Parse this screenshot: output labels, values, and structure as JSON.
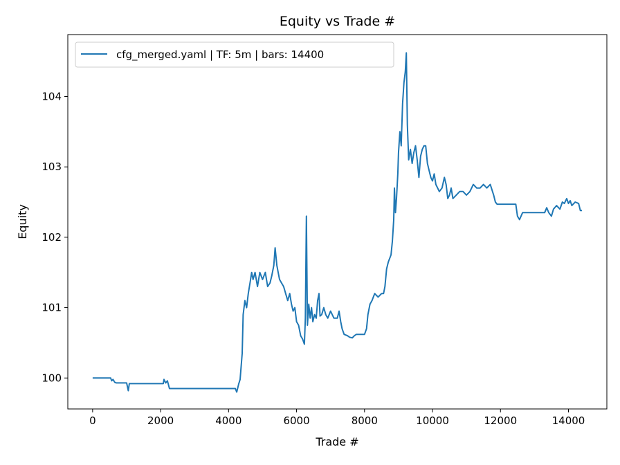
{
  "chart_data": {
    "type": "line",
    "title": "Equity vs Trade #",
    "xlabel": "Trade #",
    "ylabel": "Equity",
    "xlim": [
      -730,
      15130
    ],
    "ylim": [
      99.56,
      104.88
    ],
    "xticks": [
      0,
      2000,
      4000,
      6000,
      8000,
      10000,
      12000,
      14000
    ],
    "yticks": [
      100,
      101,
      102,
      103,
      104
    ],
    "grid": false,
    "legend_position": "top-left",
    "series_color": "#1f77b4",
    "series": [
      {
        "name": "cfg_merged.yaml | TF: 5m | bars: 14400",
        "points": [
          [
            0,
            100.0
          ],
          [
            530,
            100.0
          ],
          [
            560,
            99.96
          ],
          [
            600,
            99.98
          ],
          [
            650,
            99.94
          ],
          [
            700,
            99.93
          ],
          [
            1000,
            99.93
          ],
          [
            1050,
            99.82
          ],
          [
            1080,
            99.92
          ],
          [
            2080,
            99.92
          ],
          [
            2100,
            99.98
          ],
          [
            2150,
            99.93
          ],
          [
            2200,
            99.96
          ],
          [
            2260,
            99.85
          ],
          [
            4200,
            99.85
          ],
          [
            4240,
            99.8
          ],
          [
            4300,
            99.92
          ],
          [
            4340,
            99.98
          ],
          [
            4400,
            100.35
          ],
          [
            4430,
            100.9
          ],
          [
            4480,
            101.1
          ],
          [
            4530,
            101.0
          ],
          [
            4580,
            101.2
          ],
          [
            4630,
            101.35
          ],
          [
            4680,
            101.5
          ],
          [
            4720,
            101.4
          ],
          [
            4780,
            101.5
          ],
          [
            4850,
            101.3
          ],
          [
            4920,
            101.5
          ],
          [
            5000,
            101.4
          ],
          [
            5080,
            101.5
          ],
          [
            5150,
            101.3
          ],
          [
            5220,
            101.35
          ],
          [
            5270,
            101.45
          ],
          [
            5330,
            101.6
          ],
          [
            5370,
            101.85
          ],
          [
            5420,
            101.6
          ],
          [
            5460,
            101.5
          ],
          [
            5500,
            101.4
          ],
          [
            5560,
            101.35
          ],
          [
            5620,
            101.3
          ],
          [
            5680,
            101.2
          ],
          [
            5740,
            101.1
          ],
          [
            5800,
            101.2
          ],
          [
            5850,
            101.05
          ],
          [
            5900,
            100.95
          ],
          [
            5950,
            101.0
          ],
          [
            6000,
            100.8
          ],
          [
            6060,
            100.75
          ],
          [
            6120,
            100.6
          ],
          [
            6180,
            100.55
          ],
          [
            6230,
            100.48
          ],
          [
            6260,
            100.85
          ],
          [
            6290,
            102.3
          ],
          [
            6320,
            100.75
          ],
          [
            6360,
            101.05
          ],
          [
            6400,
            100.85
          ],
          [
            6440,
            101.0
          ],
          [
            6480,
            100.8
          ],
          [
            6530,
            100.9
          ],
          [
            6580,
            100.85
          ],
          [
            6620,
            101.1
          ],
          [
            6660,
            101.2
          ],
          [
            6690,
            100.88
          ],
          [
            6740,
            100.9
          ],
          [
            6800,
            101.0
          ],
          [
            6860,
            100.9
          ],
          [
            6920,
            100.85
          ],
          [
            7000,
            100.95
          ],
          [
            7100,
            100.85
          ],
          [
            7200,
            100.85
          ],
          [
            7250,
            100.95
          ],
          [
            7300,
            100.8
          ],
          [
            7340,
            100.7
          ],
          [
            7400,
            100.62
          ],
          [
            7500,
            100.6
          ],
          [
            7560,
            100.58
          ],
          [
            7640,
            100.57
          ],
          [
            7700,
            100.6
          ],
          [
            7760,
            100.62
          ],
          [
            8000,
            100.62
          ],
          [
            8060,
            100.7
          ],
          [
            8100,
            100.9
          ],
          [
            8160,
            101.05
          ],
          [
            8220,
            101.1
          ],
          [
            8300,
            101.2
          ],
          [
            8400,
            101.15
          ],
          [
            8500,
            101.2
          ],
          [
            8560,
            101.2
          ],
          [
            8600,
            101.3
          ],
          [
            8650,
            101.55
          ],
          [
            8700,
            101.65
          ],
          [
            8780,
            101.75
          ],
          [
            8820,
            101.95
          ],
          [
            8860,
            102.25
          ],
          [
            8880,
            102.7
          ],
          [
            8910,
            102.35
          ],
          [
            8940,
            102.55
          ],
          [
            8980,
            102.9
          ],
          [
            9000,
            103.2
          ],
          [
            9040,
            103.5
          ],
          [
            9080,
            103.3
          ],
          [
            9120,
            103.9
          ],
          [
            9160,
            104.2
          ],
          [
            9200,
            104.35
          ],
          [
            9230,
            104.62
          ],
          [
            9260,
            103.6
          ],
          [
            9300,
            103.1
          ],
          [
            9350,
            103.25
          ],
          [
            9400,
            103.05
          ],
          [
            9450,
            103.2
          ],
          [
            9500,
            103.3
          ],
          [
            9550,
            103.1
          ],
          [
            9600,
            102.85
          ],
          [
            9650,
            103.15
          ],
          [
            9700,
            103.25
          ],
          [
            9750,
            103.3
          ],
          [
            9800,
            103.3
          ],
          [
            9850,
            103.05
          ],
          [
            9900,
            102.95
          ],
          [
            9950,
            102.85
          ],
          [
            10000,
            102.8
          ],
          [
            10050,
            102.9
          ],
          [
            10100,
            102.75
          ],
          [
            10150,
            102.7
          ],
          [
            10200,
            102.65
          ],
          [
            10280,
            102.7
          ],
          [
            10350,
            102.85
          ],
          [
            10400,
            102.75
          ],
          [
            10450,
            102.55
          ],
          [
            10500,
            102.6
          ],
          [
            10550,
            102.7
          ],
          [
            10600,
            102.55
          ],
          [
            10700,
            102.6
          ],
          [
            10800,
            102.65
          ],
          [
            10900,
            102.65
          ],
          [
            11000,
            102.6
          ],
          [
            11100,
            102.65
          ],
          [
            11200,
            102.75
          ],
          [
            11300,
            102.7
          ],
          [
            11400,
            102.7
          ],
          [
            11500,
            102.75
          ],
          [
            11600,
            102.7
          ],
          [
            11700,
            102.75
          ],
          [
            11800,
            102.6
          ],
          [
            11850,
            102.5
          ],
          [
            11900,
            102.47
          ],
          [
            12450,
            102.47
          ],
          [
            12500,
            102.3
          ],
          [
            12560,
            102.25
          ],
          [
            12650,
            102.35
          ],
          [
            12700,
            102.35
          ],
          [
            13300,
            102.35
          ],
          [
            13360,
            102.42
          ],
          [
            13420,
            102.35
          ],
          [
            13500,
            102.3
          ],
          [
            13560,
            102.4
          ],
          [
            13650,
            102.45
          ],
          [
            13750,
            102.4
          ],
          [
            13820,
            102.5
          ],
          [
            13880,
            102.48
          ],
          [
            13950,
            102.55
          ],
          [
            14000,
            102.48
          ],
          [
            14050,
            102.52
          ],
          [
            14100,
            102.45
          ],
          [
            14200,
            102.5
          ],
          [
            14300,
            102.48
          ],
          [
            14350,
            102.38
          ],
          [
            14400,
            102.38
          ]
        ]
      }
    ]
  }
}
